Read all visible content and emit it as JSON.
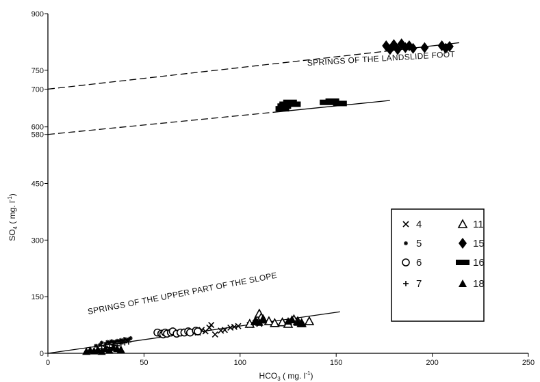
{
  "chart_data": {
    "type": "scatter",
    "title": "",
    "xlabel": "HCO3 ( mg. l-1)",
    "ylabel": "SO4 ( mg. l-1)",
    "xlabel_parts": {
      "base": "HCO",
      "sub": "3",
      "rest": " ( mg. l",
      "sup": "-1",
      "end": ")"
    },
    "ylabel_parts": {
      "base": "SO",
      "sub": "4",
      "rest": " ( mg. l",
      "sup": "-1",
      "end": ")"
    },
    "xlim": [
      0,
      250
    ],
    "ylim": [
      0,
      900
    ],
    "x_ticks": [
      0,
      50,
      100,
      150,
      200,
      250
    ],
    "y_ticks": [
      0,
      150,
      300,
      450,
      580,
      600,
      700,
      750,
      900
    ],
    "grid": false,
    "legend_position": "right",
    "series": [
      {
        "name": "4",
        "marker": "x",
        "points": [
          [
            72,
            58
          ],
          [
            75,
            60
          ],
          [
            78,
            55
          ],
          [
            80,
            62
          ],
          [
            82,
            58
          ],
          [
            84,
            68
          ],
          [
            85,
            75
          ],
          [
            87,
            50
          ],
          [
            90,
            60
          ],
          [
            92,
            62
          ],
          [
            95,
            68
          ],
          [
            97,
            70
          ],
          [
            99,
            72
          ],
          [
            105,
            75
          ],
          [
            108,
            80
          ],
          [
            110,
            78
          ]
        ]
      },
      {
        "name": "5",
        "marker": "star",
        "points": [
          [
            25,
            20
          ],
          [
            27,
            22
          ],
          [
            28,
            28
          ],
          [
            30,
            25
          ],
          [
            31,
            30
          ],
          [
            32,
            28
          ],
          [
            33,
            32
          ],
          [
            34,
            30
          ],
          [
            35,
            30
          ],
          [
            36,
            33
          ],
          [
            37,
            32
          ],
          [
            38,
            35
          ],
          [
            39,
            33
          ],
          [
            40,
            38
          ],
          [
            41,
            35
          ],
          [
            42,
            37
          ],
          [
            43,
            40
          ]
        ]
      },
      {
        "name": "6",
        "marker": "circle",
        "points": [
          [
            57,
            55
          ],
          [
            59,
            52
          ],
          [
            60,
            50
          ],
          [
            61,
            55
          ],
          [
            62,
            52
          ],
          [
            64,
            55
          ],
          [
            65,
            58
          ],
          [
            67,
            52
          ],
          [
            69,
            55
          ],
          [
            71,
            55
          ],
          [
            73,
            58
          ],
          [
            74,
            55
          ],
          [
            77,
            60
          ],
          [
            78,
            58
          ]
        ]
      },
      {
        "name": "7",
        "marker": "plus",
        "points": [
          [
            28,
            12
          ],
          [
            30,
            18
          ],
          [
            32,
            15
          ],
          [
            34,
            22
          ],
          [
            36,
            20
          ],
          [
            38,
            25
          ],
          [
            40,
            28
          ],
          [
            42,
            30
          ]
        ]
      },
      {
        "name": "11",
        "marker": "triangle-open",
        "points": [
          [
            105,
            78
          ],
          [
            108,
            85
          ],
          [
            110,
            105
          ],
          [
            111,
            95
          ],
          [
            112,
            90
          ],
          [
            115,
            85
          ],
          [
            118,
            80
          ],
          [
            122,
            82
          ],
          [
            125,
            78
          ],
          [
            128,
            90
          ],
          [
            130,
            85
          ],
          [
            132,
            80
          ],
          [
            136,
            85
          ]
        ]
      },
      {
        "name": "15",
        "marker": "diamond",
        "points": [
          [
            176,
            815
          ],
          [
            178,
            805
          ],
          [
            180,
            818
          ],
          [
            182,
            805
          ],
          [
            184,
            820
          ],
          [
            186,
            810
          ],
          [
            188,
            815
          ],
          [
            190,
            808
          ],
          [
            196,
            810
          ],
          [
            205,
            815
          ],
          [
            207,
            808
          ],
          [
            209,
            813
          ]
        ]
      },
      {
        "name": "16",
        "marker": "bar",
        "points": [
          [
            122,
            648
          ],
          [
            123,
            655
          ],
          [
            124,
            660
          ],
          [
            126,
            665
          ],
          [
            128,
            660
          ],
          [
            145,
            665
          ],
          [
            148,
            668
          ],
          [
            152,
            662
          ]
        ]
      },
      {
        "name": "18",
        "marker": "triangle-filled",
        "points": [
          [
            20,
            5
          ],
          [
            22,
            8
          ],
          [
            24,
            6
          ],
          [
            26,
            10
          ],
          [
            28,
            5
          ],
          [
            30,
            12
          ],
          [
            32,
            8
          ],
          [
            34,
            15
          ],
          [
            36,
            12
          ],
          [
            38,
            10
          ],
          [
            108,
            85
          ],
          [
            110,
            82
          ],
          [
            112,
            88
          ],
          [
            125,
            85
          ],
          [
            127,
            90
          ],
          [
            130,
            82
          ],
          [
            132,
            78
          ]
        ]
      }
    ],
    "lines": [
      {
        "x1": 0,
        "y1": 700,
        "x2": 175,
        "y2": 800,
        "style": "dashed"
      },
      {
        "x1": 175,
        "y1": 800,
        "x2": 214,
        "y2": 823,
        "style": "solid"
      },
      {
        "x1": 0,
        "y1": 580,
        "x2": 120,
        "y2": 640,
        "style": "dashed"
      },
      {
        "x1": 120,
        "y1": 640,
        "x2": 178,
        "y2": 670,
        "style": "solid"
      },
      {
        "x1": 0,
        "y1": 0,
        "x2": 152,
        "y2": 110,
        "style": "solid"
      }
    ],
    "annotations": [
      {
        "text": "SPRINGS OF THE LANDSLIDE FOOT",
        "x": 135,
        "y": 762,
        "angle_deg": -3.5
      },
      {
        "text": "SPRINGS OF THE UPPER PART OF THE SLOPE",
        "x": 21,
        "y": 103,
        "angle_deg": -11
      }
    ],
    "legend": {
      "columns": [
        [
          {
            "series": "4",
            "label": "4"
          },
          {
            "series": "5",
            "label": "5"
          },
          {
            "series": "6",
            "label": "6"
          },
          {
            "series": "7",
            "label": "7"
          }
        ],
        [
          {
            "series": "11",
            "label": "11"
          },
          {
            "series": "15",
            "label": "15"
          },
          {
            "series": "16",
            "label": "16"
          },
          {
            "series": "18",
            "label": "18"
          }
        ]
      ]
    }
  }
}
